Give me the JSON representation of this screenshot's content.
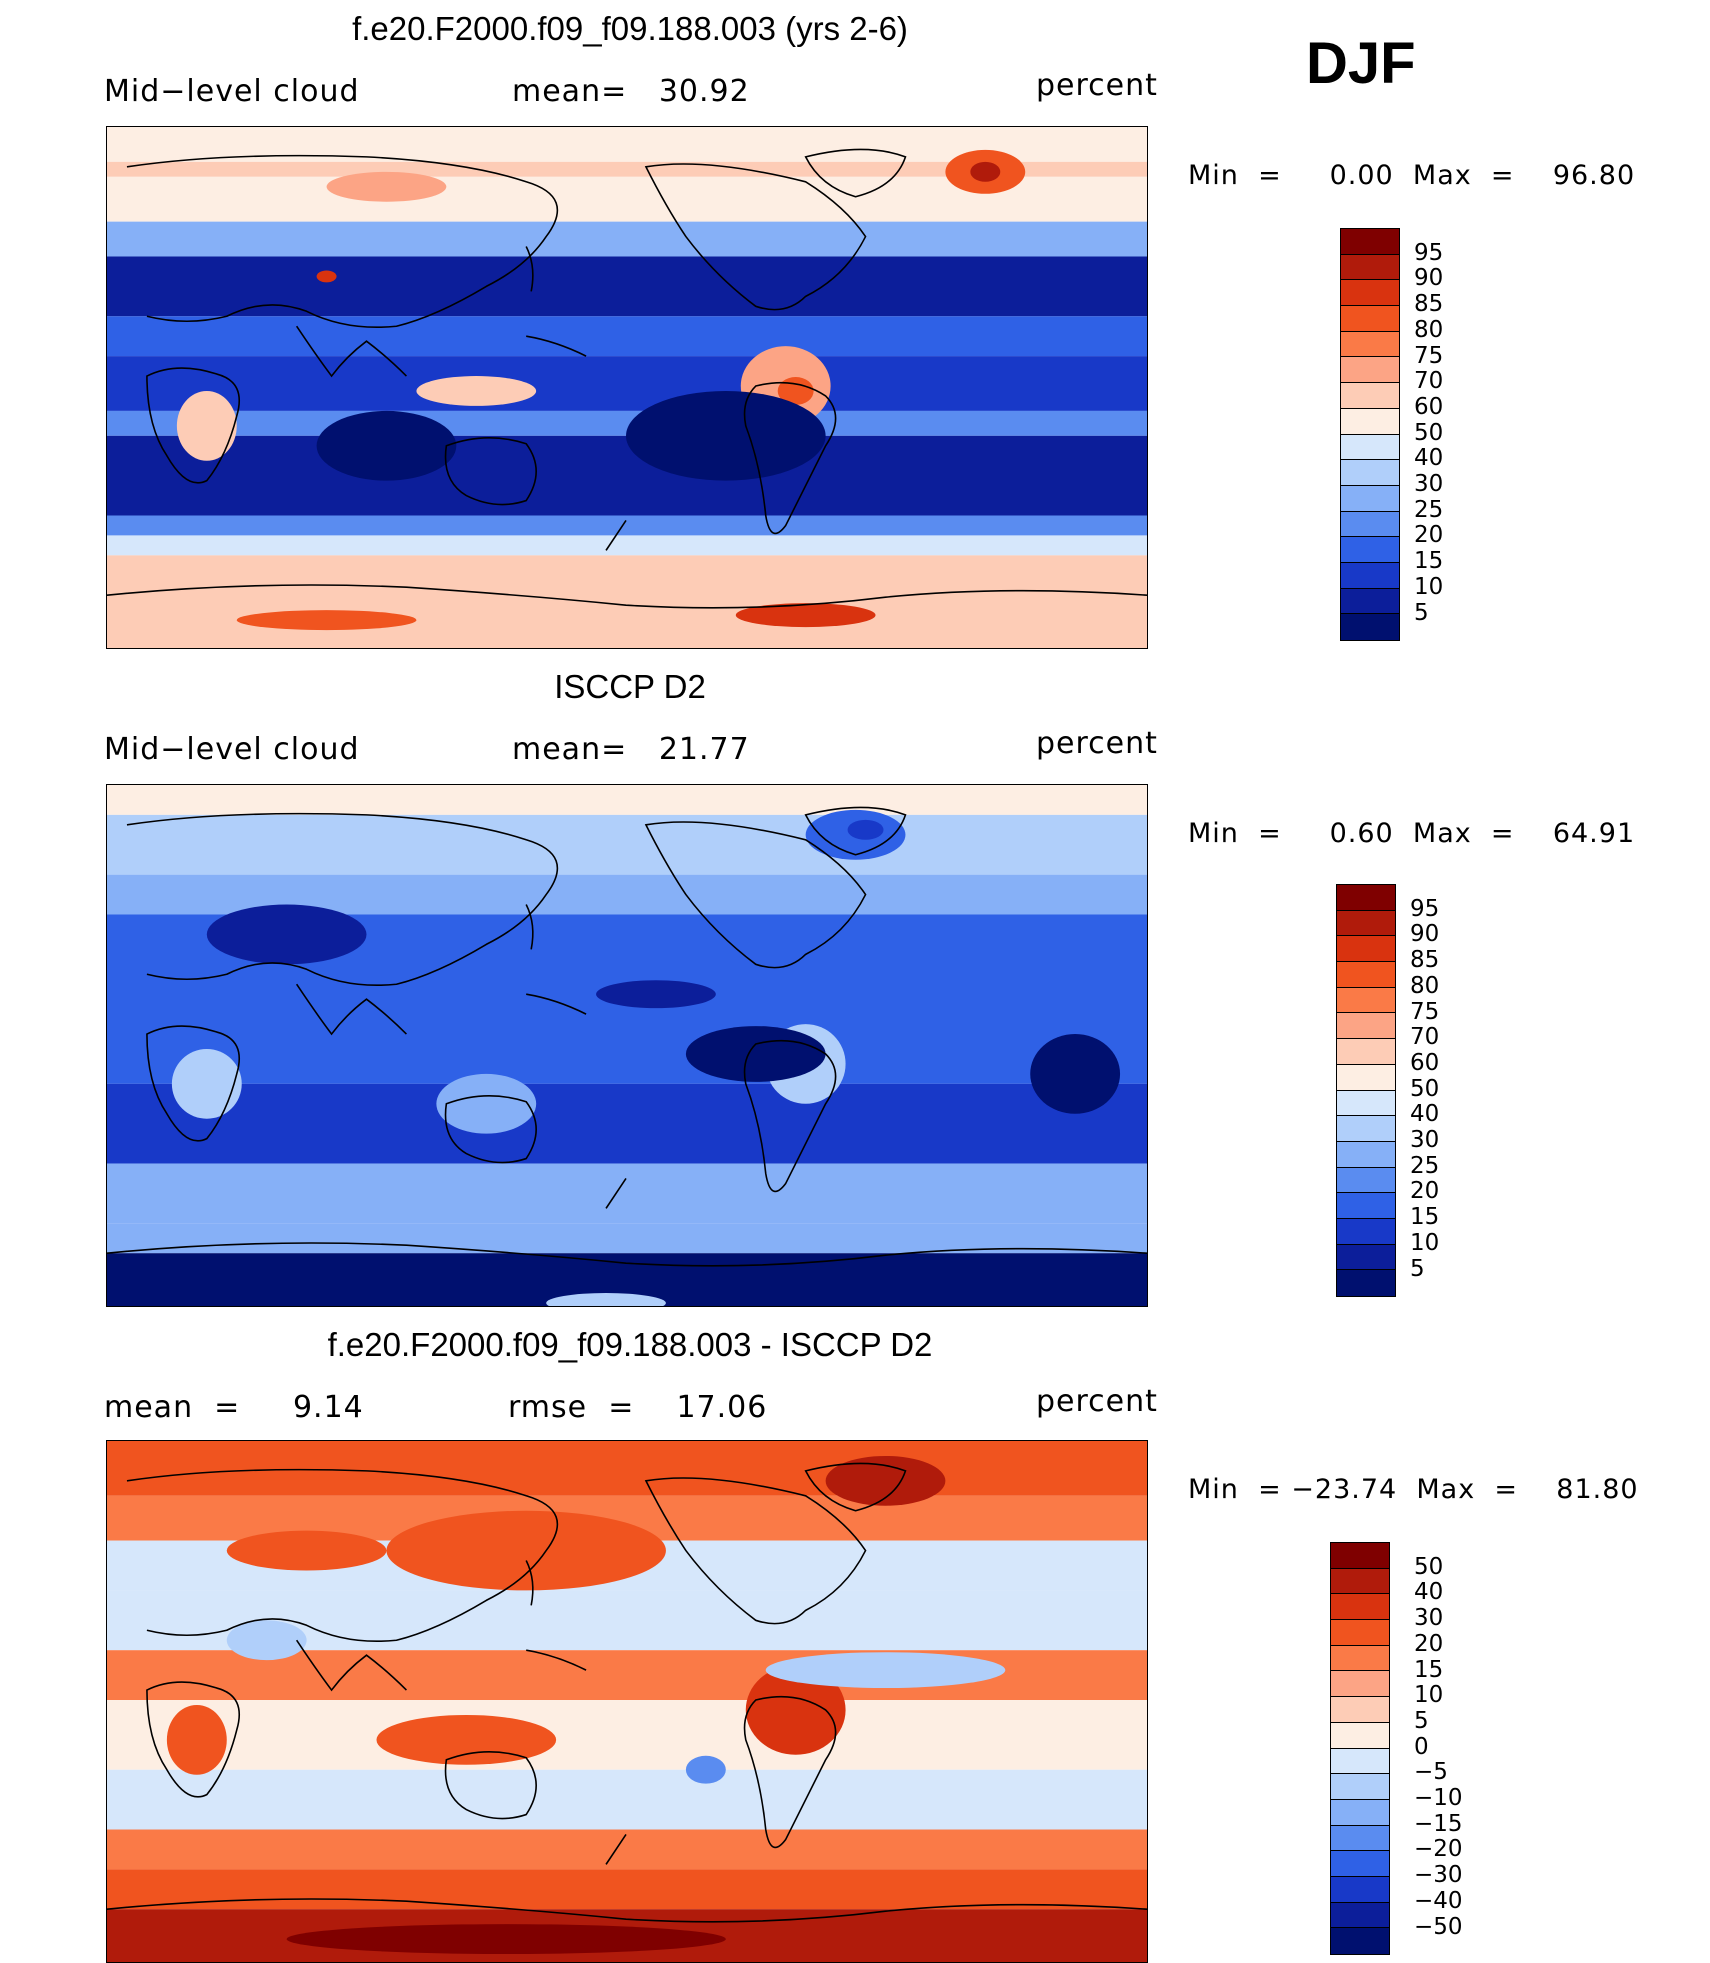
{
  "season": "DJF",
  "panels": [
    {
      "title": "f.e20.F2000.f09_f09.188.003 (yrs 2-6)",
      "left_label": "Mid−level cloud",
      "mid_label": "mean=   30.92",
      "right_label": "percent",
      "minmax": "Min  =     0.00  Max  =    96.80",
      "colorbar": {
        "levels": [
          "95",
          "90",
          "85",
          "80",
          "75",
          "70",
          "60",
          "50",
          "40",
          "30",
          "25",
          "20",
          "15",
          "10",
          "5"
        ],
        "colors": [
          "#7f0000",
          "#b01b0b",
          "#d9330f",
          "#f0541f",
          "#fa7a47",
          "#fca485",
          "#fdccb6",
          "#fdeee3",
          "#d6e7fb",
          "#b0cffa",
          "#86b0f7",
          "#5a8cf0",
          "#2f61e6",
          "#1839c8",
          "#0c1e9a",
          "#00106f"
        ]
      },
      "scheme": "model"
    },
    {
      "title": "ISCCP D2",
      "left_label": "Mid−level cloud",
      "mid_label": "mean=   21.77",
      "right_label": "percent",
      "minmax": "Min  =     0.60  Max  =    64.91",
      "colorbar": {
        "levels": [
          "95",
          "90",
          "85",
          "80",
          "75",
          "70",
          "60",
          "50",
          "40",
          "30",
          "25",
          "20",
          "15",
          "10",
          "5"
        ],
        "colors": [
          "#7f0000",
          "#b01b0b",
          "#d9330f",
          "#f0541f",
          "#fa7a47",
          "#fca485",
          "#fdccb6",
          "#fdeee3",
          "#d6e7fb",
          "#b0cffa",
          "#86b0f7",
          "#5a8cf0",
          "#2f61e6",
          "#1839c8",
          "#0c1e9a",
          "#00106f"
        ]
      },
      "scheme": "obs"
    },
    {
      "title": "f.e20.F2000.f09_f09.188.003 - ISCCP D2",
      "left_label": "mean  =     9.14",
      "mid_label": "rmse  =    17.06",
      "right_label": "percent",
      "minmax": "Min  = −23.74  Max  =    81.80",
      "colorbar": {
        "levels": [
          "50",
          "40",
          "30",
          "20",
          "15",
          "10",
          "5",
          "0",
          "−5",
          "−10",
          "−15",
          "−20",
          "−30",
          "−40",
          "−50"
        ],
        "colors": [
          "#7f0000",
          "#b01b0b",
          "#d9330f",
          "#f0541f",
          "#fa7a47",
          "#fca485",
          "#fdccb6",
          "#fdeee3",
          "#d6e7fb",
          "#b0cffa",
          "#86b0f7",
          "#5a8cf0",
          "#2f61e6",
          "#1839c8",
          "#0c1e9a",
          "#00106f"
        ]
      },
      "scheme": "diff"
    }
  ]
}
